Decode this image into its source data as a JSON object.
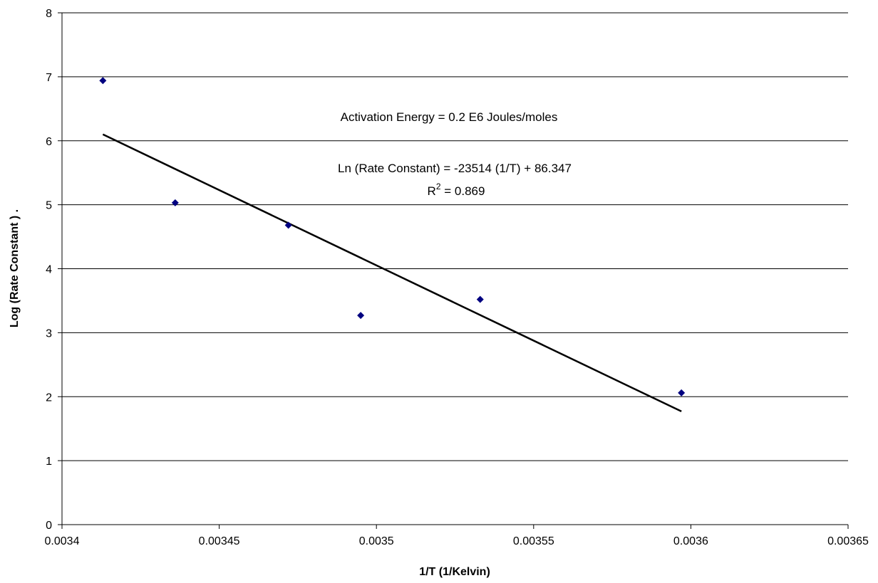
{
  "chart_data": {
    "type": "scatter",
    "xlabel": "1/T (1/Kelvin)",
    "ylabel": "Log (Rate Constant ) .",
    "xlim": [
      0.0034,
      0.00365
    ],
    "ylim": [
      0,
      8
    ],
    "x_ticks": [
      "0.0034",
      "0.00345",
      "0.0035",
      "0.00355",
      "0.0036",
      "0.00365"
    ],
    "y_ticks": [
      "0",
      "1",
      "2",
      "3",
      "4",
      "5",
      "6",
      "7",
      "8"
    ],
    "grid": "horizontal",
    "series": [
      {
        "marker": "diamond",
        "color": "#000080",
        "points": [
          {
            "x": 0.003413,
            "y": 6.94
          },
          {
            "x": 0.003436,
            "y": 5.03
          },
          {
            "x": 0.003472,
            "y": 4.68
          },
          {
            "x": 0.003495,
            "y": 3.27
          },
          {
            "x": 0.003533,
            "y": 3.52
          },
          {
            "x": 0.003597,
            "y": 2.06
          }
        ]
      }
    ],
    "trendline": {
      "type": "linear",
      "color": "#000000",
      "x_start": 0.003413,
      "x_end": 0.003597,
      "y_start": 6.1,
      "y_end": 1.77
    },
    "annotations": {
      "activation": "Activation Energy = 0.2 E6 Joules/moles",
      "equation": "Ln (Rate Constant) = -23514 (1/T) + 86.347",
      "r2_prefix": "R",
      "r2_sup": "2",
      "r2_value": " = 0.869"
    }
  }
}
